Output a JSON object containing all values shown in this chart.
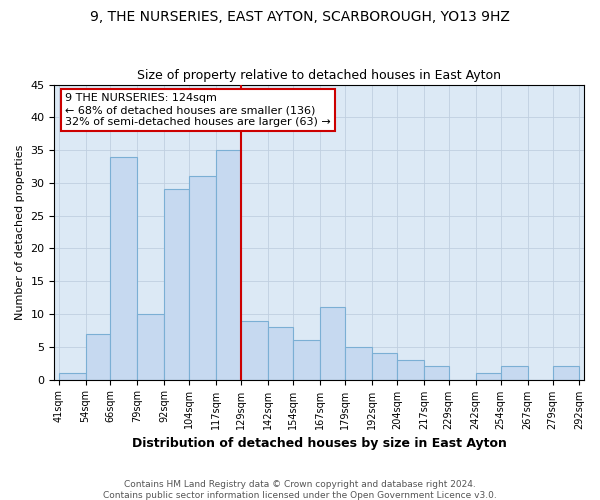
{
  "title": "9, THE NURSERIES, EAST AYTON, SCARBOROUGH, YO13 9HZ",
  "subtitle": "Size of property relative to detached houses in East Ayton",
  "xlabel": "Distribution of detached houses by size in East Ayton",
  "ylabel": "Number of detached properties",
  "bin_labels": [
    "41sqm",
    "54sqm",
    "66sqm",
    "79sqm",
    "92sqm",
    "104sqm",
    "117sqm",
    "129sqm",
    "142sqm",
    "154sqm",
    "167sqm",
    "179sqm",
    "192sqm",
    "204sqm",
    "217sqm",
    "229sqm",
    "242sqm",
    "254sqm",
    "267sqm",
    "279sqm",
    "292sqm"
  ],
  "bar_heights": [
    1,
    7,
    34,
    10,
    29,
    31,
    35,
    9,
    8,
    6,
    11,
    5,
    4,
    3,
    2,
    0,
    1,
    2,
    0,
    2
  ],
  "bar_color": "#c6d9f0",
  "bar_edge_color": "#7bafd4",
  "highlight_line_color": "#cc0000",
  "ylim": [
    0,
    45
  ],
  "yticks": [
    0,
    5,
    10,
    15,
    20,
    25,
    30,
    35,
    40,
    45
  ],
  "annotation_line1": "9 THE NURSERIES: 124sqm",
  "annotation_line2": "← 68% of detached houses are smaller (136)",
  "annotation_line3": "32% of semi-detached houses are larger (63) →",
  "annotation_box_color": "#ffffff",
  "annotation_box_edge_color": "#cc0000",
  "footer_line1": "Contains HM Land Registry data © Crown copyright and database right 2024.",
  "footer_line2": "Contains public sector information licensed under the Open Government Licence v3.0.",
  "background_color": "#ffffff",
  "axes_bg_color": "#dce9f5",
  "grid_color": "#c0cfe0"
}
